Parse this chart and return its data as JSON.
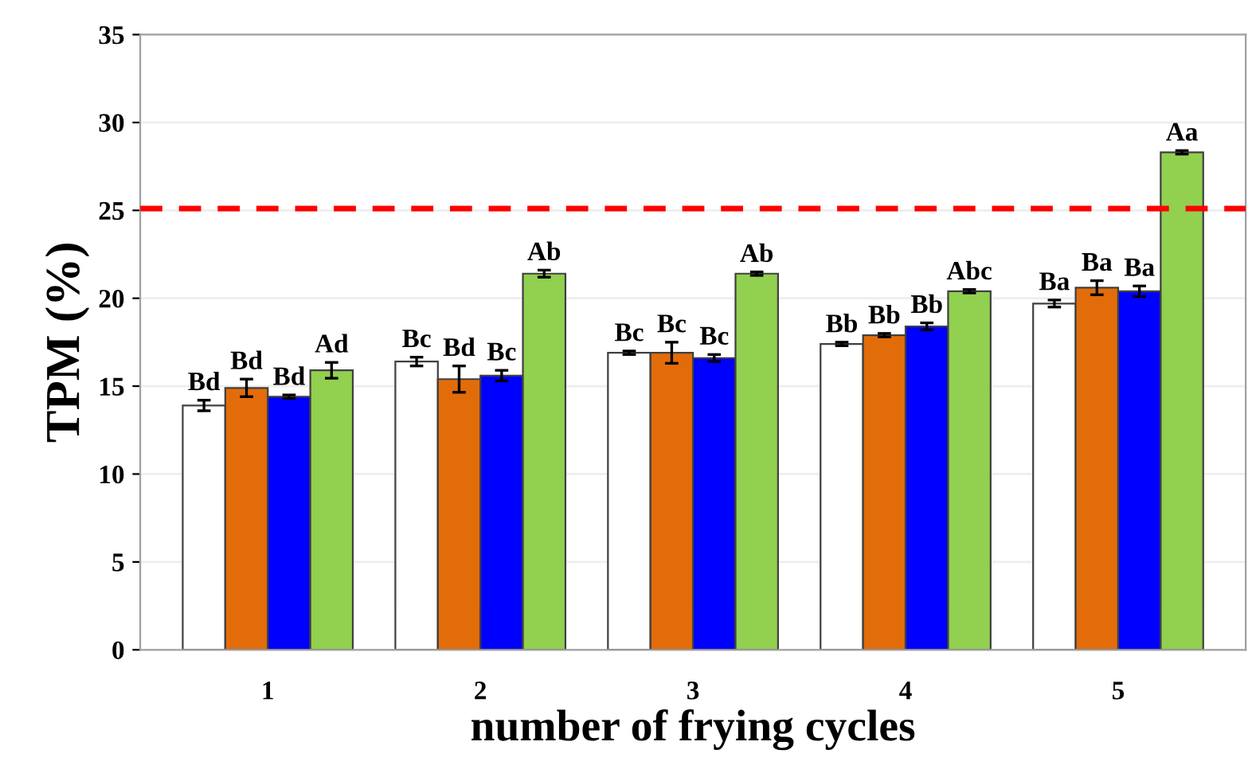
{
  "chart_data": {
    "type": "bar",
    "xlabel": "number of frying cycles",
    "ylabel": "TPM (%)",
    "categories": [
      "1",
      "2",
      "3",
      "4",
      "5"
    ],
    "series": [
      {
        "color": "#ffffff",
        "values": [
          13.9,
          16.4,
          16.9,
          17.4,
          19.7
        ],
        "errors": [
          0.3,
          0.25,
          0.1,
          0.1,
          0.2
        ],
        "value_labels": [
          "Bd",
          "Bc",
          "Bc",
          "Bb",
          "Ba"
        ]
      },
      {
        "color": "#e36c0a",
        "values": [
          14.9,
          15.4,
          16.9,
          17.9,
          20.6
        ],
        "errors": [
          0.5,
          0.75,
          0.6,
          0.1,
          0.4
        ],
        "value_labels": [
          "Bd",
          "Bd",
          "Bc",
          "Bb",
          "Ba"
        ]
      },
      {
        "color": "#0000ff",
        "values": [
          14.4,
          15.6,
          16.6,
          18.4,
          20.4
        ],
        "errors": [
          0.1,
          0.3,
          0.2,
          0.2,
          0.3
        ],
        "value_labels": [
          "Bd",
          "Bc",
          "Bc",
          "Bb",
          "Ba"
        ]
      },
      {
        "color": "#92d050",
        "values": [
          15.9,
          21.4,
          21.4,
          20.4,
          28.3
        ],
        "errors": [
          0.45,
          0.2,
          0.1,
          0.1,
          0.1
        ],
        "value_labels": [
          "Ad",
          "Ab",
          "Ab",
          "Abc",
          "Aa"
        ]
      }
    ],
    "ylim": [
      0,
      35
    ],
    "yticks": [
      0,
      5,
      10,
      15,
      20,
      25,
      30,
      35
    ],
    "grid": "y",
    "ref_lines": [
      {
        "axis": "y",
        "value": 25.1,
        "color": "#ff0000",
        "line_style": "dashed"
      }
    ]
  }
}
